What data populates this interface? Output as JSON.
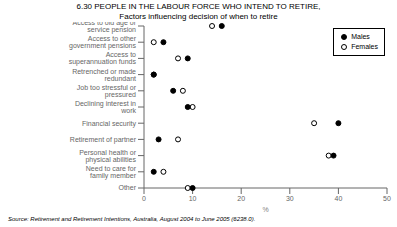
{
  "chart_data": {
    "type": "dot",
    "orientation": "horizontal",
    "title": "6.30  PEOPLE IN THE LABOUR FORCE WHO INTEND TO RETIRE,",
    "subtitle": "Factors influencing decision of when to retire",
    "annotations": [
      "Source: Retirement and Retirement Intentions, Australia, August 2004 to June 2005 (6238.0)."
    ],
    "categories": [
      "Access to old age or service pension",
      "Access to other government pensions",
      "Access to superannuation funds",
      "Retrenched or made redundant",
      "Job too stressful or pressured",
      "Declining interest in work",
      "Financial security",
      "Retirement of partner",
      "Personal health or physical abilities",
      "Need to care for family member",
      "Other"
    ],
    "series": [
      {
        "name": "Males",
        "color": "#000000",
        "marker": "filled_circle",
        "values": [
          16,
          4,
          9,
          2,
          6,
          9,
          40,
          3,
          39,
          2,
          10
        ]
      },
      {
        "name": "Females",
        "color": "#000000",
        "marker": "open_circle",
        "values": [
          14,
          2,
          7,
          2,
          8,
          10,
          35,
          7,
          38,
          4,
          9
        ]
      }
    ],
    "xlabel": "%",
    "xlim": [
      0,
      50
    ],
    "xticks": [
      0,
      10,
      20,
      30,
      40,
      50
    ],
    "legend": "upper right",
    "grid": false
  }
}
